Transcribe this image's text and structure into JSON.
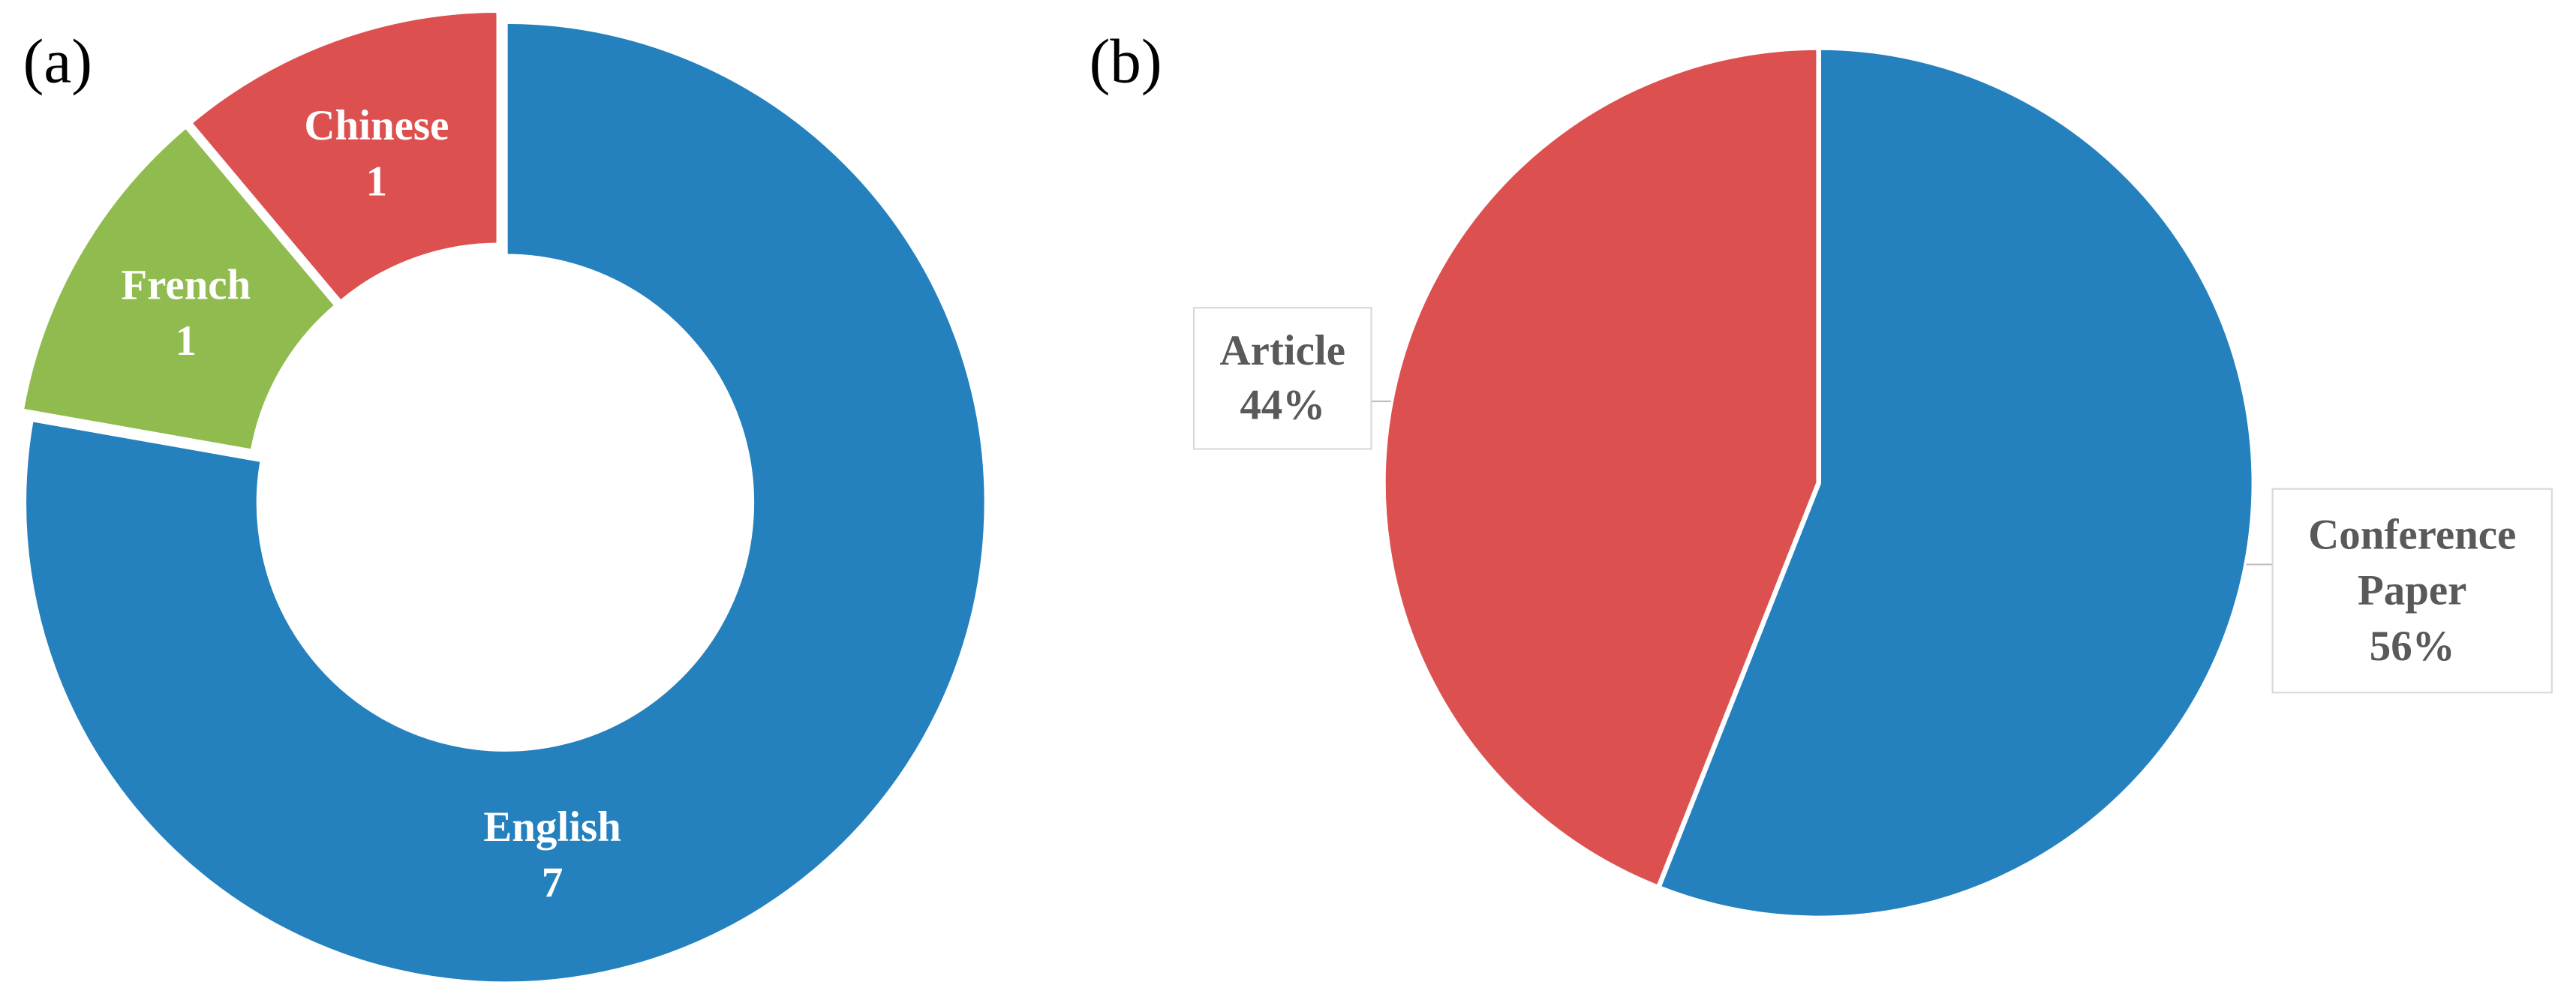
{
  "chart_data": [
    {
      "type": "donut",
      "title": "(a)",
      "categories": [
        "English",
        "French",
        "Chinese"
      ],
      "values": [
        7,
        1,
        1
      ],
      "colors": [
        "#2481be",
        "#8fbb4f",
        "#dc5150"
      ]
    },
    {
      "type": "pie",
      "title": "(b)",
      "categories": [
        "Conference Paper",
        "Article"
      ],
      "values": [
        56,
        44
      ],
      "value_labels": [
        "56%",
        "44%"
      ],
      "colors": [
        "#2481be",
        "#dc5150"
      ]
    }
  ]
}
